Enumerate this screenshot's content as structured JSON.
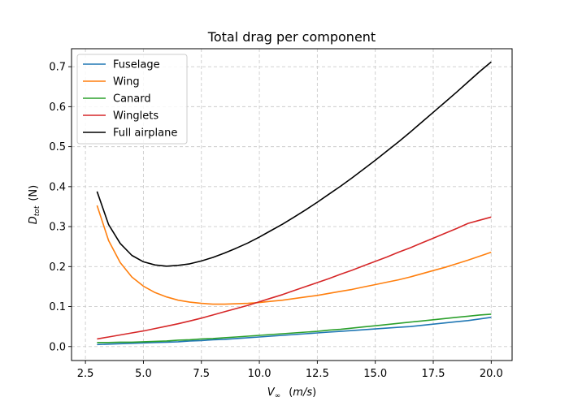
{
  "chart_data": {
    "type": "line",
    "title": "Total drag per component",
    "xlabel": "V∞ (m/s)",
    "ylabel": "D_tot (N)",
    "xlim": [
      1.9,
      20.9
    ],
    "ylim": [
      -0.035,
      0.745
    ],
    "xticks": [
      2.5,
      5.0,
      7.5,
      10.0,
      12.5,
      15.0,
      17.5,
      20.0
    ],
    "xtick_labels": [
      "2.5",
      "5.0",
      "7.5",
      "10.0",
      "12.5",
      "15.0",
      "17.5",
      "20.0"
    ],
    "yticks": [
      0.0,
      0.1,
      0.2,
      0.3,
      0.4,
      0.5,
      0.6,
      0.7
    ],
    "ytick_labels": [
      "0.0",
      "0.1",
      "0.2",
      "0.3",
      "0.4",
      "0.5",
      "0.6",
      "0.7"
    ],
    "grid": true,
    "legend_position": "top-left",
    "x": [
      3.0,
      3.5,
      4.0,
      4.5,
      5.0,
      5.5,
      6.0,
      6.5,
      7.0,
      7.5,
      8.0,
      8.5,
      9.0,
      9.5,
      10.0,
      10.5,
      11.0,
      11.5,
      12.0,
      12.5,
      13.0,
      13.5,
      14.0,
      14.5,
      15.0,
      15.5,
      16.0,
      16.5,
      17.0,
      17.5,
      18.0,
      18.5,
      19.0,
      19.5,
      20.0
    ],
    "series": [
      {
        "name": "Fuselage",
        "color": "#1f77b4",
        "values": [
          0.005,
          0.006,
          0.007,
          0.008,
          0.009,
          0.01,
          0.011,
          0.012,
          0.014,
          0.015,
          0.017,
          0.018,
          0.02,
          0.022,
          0.024,
          0.026,
          0.028,
          0.03,
          0.032,
          0.034,
          0.036,
          0.038,
          0.04,
          0.042,
          0.044,
          0.046,
          0.048,
          0.05,
          0.053,
          0.056,
          0.059,
          0.062,
          0.065,
          0.069,
          0.073
        ]
      },
      {
        "name": "Wing",
        "color": "#ff7f0e",
        "values": [
          0.353,
          0.265,
          0.21,
          0.174,
          0.151,
          0.135,
          0.124,
          0.116,
          0.111,
          0.108,
          0.106,
          0.106,
          0.107,
          0.108,
          0.11,
          0.113,
          0.116,
          0.12,
          0.124,
          0.128,
          0.133,
          0.138,
          0.143,
          0.149,
          0.155,
          0.161,
          0.167,
          0.174,
          0.182,
          0.19,
          0.198,
          0.207,
          0.216,
          0.226,
          0.236
        ]
      },
      {
        "name": "Canard",
        "color": "#2ca02c",
        "values": [
          0.01,
          0.01,
          0.011,
          0.011,
          0.012,
          0.013,
          0.014,
          0.016,
          0.017,
          0.019,
          0.02,
          0.022,
          0.024,
          0.026,
          0.028,
          0.03,
          0.032,
          0.034,
          0.036,
          0.038,
          0.041,
          0.043,
          0.046,
          0.049,
          0.052,
          0.055,
          0.058,
          0.061,
          0.064,
          0.067,
          0.07,
          0.073,
          0.076,
          0.079,
          0.081
        ]
      },
      {
        "name": "Winglets",
        "color": "#d62728",
        "values": [
          0.019,
          0.024,
          0.029,
          0.034,
          0.039,
          0.045,
          0.051,
          0.057,
          0.064,
          0.071,
          0.079,
          0.087,
          0.095,
          0.103,
          0.112,
          0.121,
          0.13,
          0.14,
          0.15,
          0.16,
          0.17,
          0.181,
          0.191,
          0.202,
          0.213,
          0.224,
          0.236,
          0.247,
          0.259,
          0.271,
          0.283,
          0.295,
          0.308,
          0.316,
          0.324
        ]
      },
      {
        "name": "Full airplane",
        "color": "#000000",
        "values": [
          0.388,
          0.305,
          0.258,
          0.228,
          0.212,
          0.204,
          0.201,
          0.203,
          0.207,
          0.214,
          0.223,
          0.234,
          0.246,
          0.259,
          0.274,
          0.29,
          0.306,
          0.324,
          0.342,
          0.361,
          0.381,
          0.401,
          0.422,
          0.444,
          0.466,
          0.489,
          0.512,
          0.536,
          0.561,
          0.586,
          0.611,
          0.636,
          0.662,
          0.688,
          0.712
        ]
      }
    ]
  }
}
